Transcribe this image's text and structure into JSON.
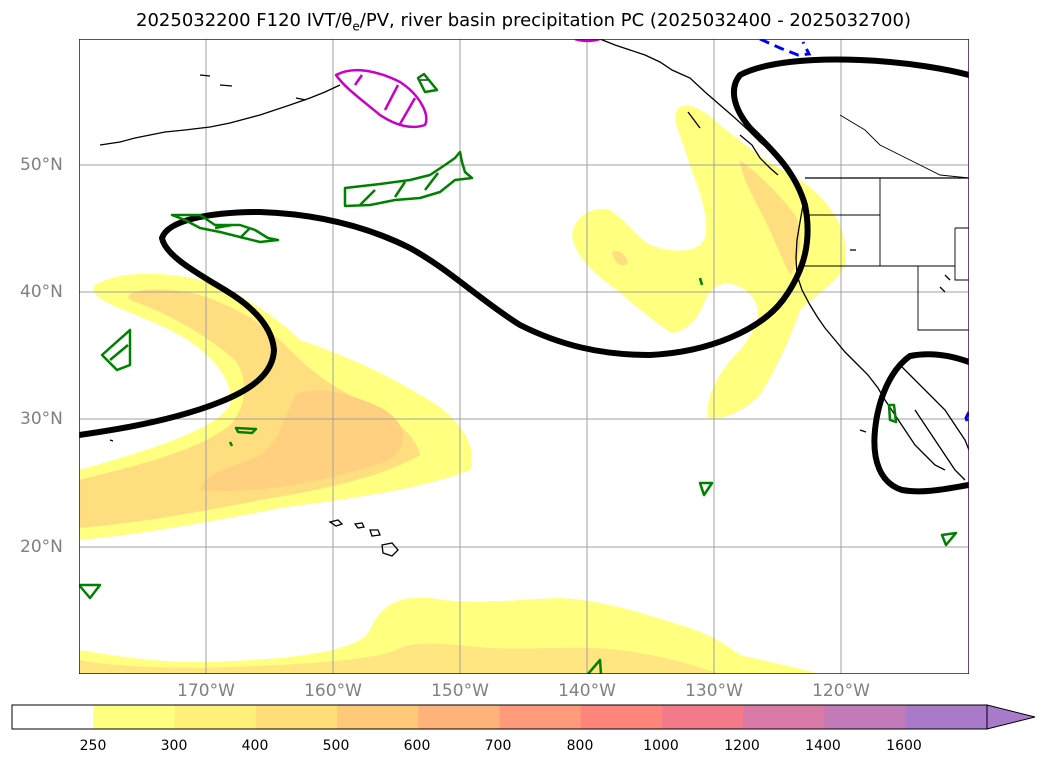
{
  "title": {
    "before": "2025032200 F120 IVT/",
    "theta": "θ",
    "sub": "e",
    "after": "/PV, river basin precipitation PC (2025032400 - 2025032700)"
  },
  "lat_labels": [
    "50°N",
    "40°N",
    "30°N",
    "20°N"
  ],
  "lon_labels": [
    "170°W",
    "160°W",
    "150°W",
    "140°W",
    "130°W",
    "120°W"
  ],
  "colorbar": {
    "ticks": [
      "250",
      "300",
      "400",
      "500",
      "600",
      "700",
      "800",
      "1000",
      "1200",
      "1400",
      "1600"
    ],
    "colors": [
      "#ffffff",
      "#ffff80",
      "#fff07a",
      "#ffde7a",
      "#ffc97a",
      "#ffb27a",
      "#ff9a7a",
      "#ff857a",
      "#f27a8a",
      "#d97aa6",
      "#c27ab8",
      "#a87ac9"
    ],
    "extend": "max"
  },
  "colors": {
    "ivt_fill_low": "#ffff80",
    "ivt_fill_mid": "#ffe680",
    "ivt_fill_high": "#ffd480",
    "theta_e_contour": "#000000",
    "pv_contour": "#008000",
    "precip_contour": "#c800c8",
    "dashed_contour": "#0000ff",
    "coastline": "#000000",
    "gridline": "#a0a0a0"
  }
}
